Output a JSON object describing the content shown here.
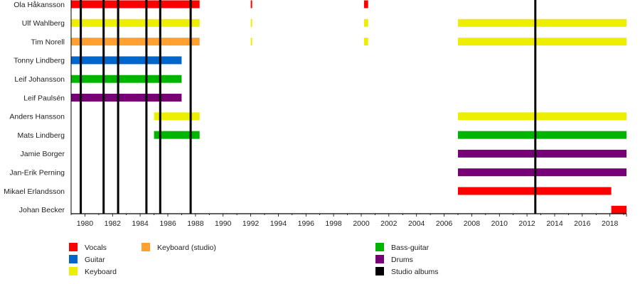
{
  "chart_data": {
    "type": "timeline",
    "title": "",
    "xlabel": "",
    "ylabel": "",
    "xlim": [
      1979,
      2019.2
    ],
    "x_tick_labels": [
      "1980",
      "1982",
      "1984",
      "1986",
      "1988",
      "1990",
      "1992",
      "1994",
      "1996",
      "1998",
      "2000",
      "2002",
      "2004",
      "2006",
      "2008",
      "2010",
      "2012",
      "2014",
      "2016",
      "2018"
    ],
    "x_ticks": [
      1980,
      1982,
      1984,
      1986,
      1988,
      1990,
      1992,
      1994,
      1996,
      1998,
      2000,
      2002,
      2004,
      2006,
      2008,
      2010,
      2012,
      2014,
      2016,
      2018
    ],
    "role_colors": {
      "Vocals": "#ff0000",
      "Guitar": "#0066cc",
      "Keyboard": "#eeee00",
      "Keyboard (studio)": "#ffa030",
      "Bass-guitar": "#00b400",
      "Drums": "#770077",
      "Studio albums": "#000000"
    },
    "members": [
      {
        "name": "Ola Håkansson",
        "spans": [
          {
            "role": "Vocals",
            "start": 1979,
            "end": 1988.3
          },
          {
            "role": "Vocals",
            "start": 1992.0,
            "end": 1992.1
          },
          {
            "role": "Vocals",
            "start": 2000.2,
            "end": 2000.5
          }
        ]
      },
      {
        "name": "Ulf Wahlberg",
        "spans": [
          {
            "role": "Keyboard",
            "start": 1979,
            "end": 1988.3
          },
          {
            "role": "Keyboard",
            "start": 1992.0,
            "end": 1992.1
          },
          {
            "role": "Keyboard",
            "start": 2000.2,
            "end": 2000.5
          },
          {
            "role": "Keyboard",
            "start": 2007.0,
            "end": 2019.2
          }
        ]
      },
      {
        "name": "Tim Norell",
        "spans": [
          {
            "role": "Keyboard (studio)",
            "start": 1979,
            "end": 1988.3
          },
          {
            "role": "Keyboard",
            "start": 1992.0,
            "end": 1992.1
          },
          {
            "role": "Keyboard",
            "start": 2000.2,
            "end": 2000.5
          },
          {
            "role": "Keyboard",
            "start": 2007.0,
            "end": 2019.2
          }
        ]
      },
      {
        "name": "Tonny Lindberg",
        "spans": [
          {
            "role": "Guitar",
            "start": 1979,
            "end": 1987.0
          }
        ]
      },
      {
        "name": "Leif Johansson",
        "spans": [
          {
            "role": "Bass-guitar",
            "start": 1979,
            "end": 1987.0
          }
        ]
      },
      {
        "name": "Leif Paulsén",
        "spans": [
          {
            "role": "Drums",
            "start": 1979,
            "end": 1987.0
          }
        ]
      },
      {
        "name": "Anders Hansson",
        "spans": [
          {
            "role": "Keyboard",
            "start": 1985.0,
            "end": 1988.3
          },
          {
            "role": "Keyboard",
            "start": 2007.0,
            "end": 2019.2
          }
        ]
      },
      {
        "name": "Mats Lindberg",
        "spans": [
          {
            "role": "Bass-guitar",
            "start": 1985.0,
            "end": 1988.3
          },
          {
            "role": "Bass-guitar",
            "start": 2007.0,
            "end": 2019.2
          }
        ]
      },
      {
        "name": "Jamie Borger",
        "spans": [
          {
            "role": "Drums",
            "start": 2007.0,
            "end": 2019.2
          }
        ]
      },
      {
        "name": "Jan-Erik Perning",
        "spans": [
          {
            "role": "Drums",
            "start": 2007.0,
            "end": 2019.2
          }
        ]
      },
      {
        "name": "Mikael Erlandsson",
        "spans": [
          {
            "role": "Vocals",
            "start": 2007.0,
            "end": 2018.1
          }
        ]
      },
      {
        "name": "Johan Becker",
        "spans": [
          {
            "role": "Vocals",
            "start": 2018.1,
            "end": 2019.2
          }
        ]
      }
    ],
    "studio_albums": [
      1979.7,
      1981.35,
      1982.4,
      1984.45,
      1985.45,
      1987.65,
      2012.6
    ],
    "legend": [
      {
        "label": "Vocals",
        "color": "#ff0000"
      },
      {
        "label": "Guitar",
        "color": "#0066cc"
      },
      {
        "label": "Keyboard",
        "color": "#eeee00"
      },
      {
        "label": "Keyboard (studio)",
        "color": "#ffa030"
      },
      {
        "label": "Bass-guitar",
        "color": "#00b400"
      },
      {
        "label": "Drums",
        "color": "#770077"
      },
      {
        "label": "Studio albums",
        "color": "#000000"
      }
    ],
    "legend_placement": "bottom"
  }
}
